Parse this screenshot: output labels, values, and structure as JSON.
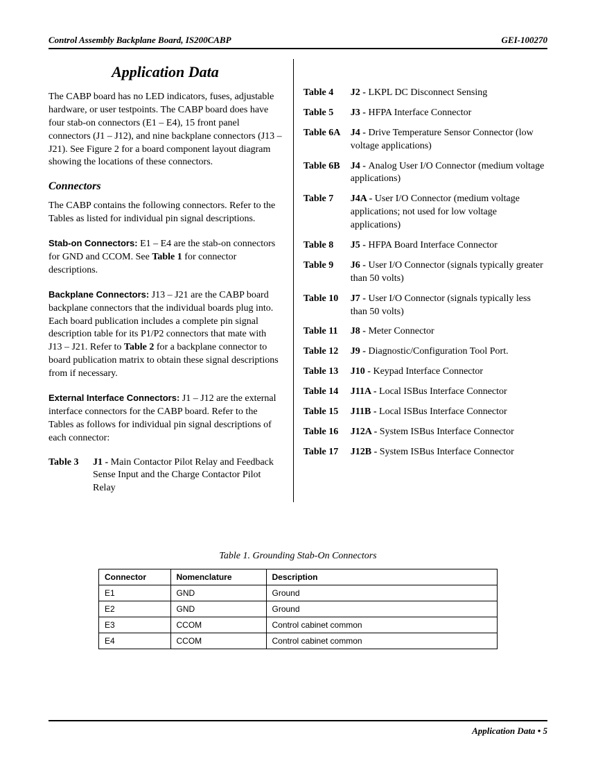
{
  "header": {
    "left": "Control Assembly Backplane Board, IS200CABP",
    "right": "GEI-100270"
  },
  "title": "Application Data",
  "intro": "The CABP board has no LED indicators, fuses, adjustable hardware, or user testpoints. The CABP board does have four stab-on connectors (E1 – E4), 15 front panel connectors (J1 – J12), and nine backplane connectors (J13 – J21). See Figure 2 for a board component layout diagram showing the locations of these connectors.",
  "connectors_heading": "Connectors",
  "connectors_intro": "The CABP contains the following connectors. Refer to the Tables as listed for individual pin signal descriptions.",
  "stabon": {
    "label": "Stab-on Connectors:",
    "text": "  E1 – E4 are the stab-on connectors for GND and CCOM. See ",
    "bold_ref": "Table 1",
    "tail": " for connector descriptions."
  },
  "backplane": {
    "label": "Backplane Connectors:",
    "text": "  J13 – J21 are the CABP board backplane connectors that the individual boards plug into. Each board publication includes a complete pin signal description table for its P1/P2 connectors that mate with J13 – J21. Refer to ",
    "bold_ref": "Table 2",
    "tail": " for a backplane connector to board publication matrix to obtain these signal descriptions from if necessary."
  },
  "external": {
    "label": "External Interface Connectors:",
    "text": "  J1 – J12 are the external interface connectors for the CABP board. Refer to the Tables as follows for individual pin signal descriptions of each connector:"
  },
  "table3": {
    "label": "Table 3",
    "conn": "J1 - ",
    "desc": "Main Contactor Pilot Relay and Feedback Sense Input and the Charge Contactor Pilot Relay"
  },
  "right_list": [
    {
      "label": "Table 4",
      "conn": "J2 - ",
      "desc": "LKPL DC Disconnect Sensing"
    },
    {
      "label": "Table 5",
      "conn": "J3 - ",
      "desc": "HFPA Interface Connector"
    },
    {
      "label": "Table 6A",
      "conn": "J4 - ",
      "desc": "Drive Temperature Sensor Connector (low voltage applications)"
    },
    {
      "label": "Table 6B",
      "conn": "J4 - ",
      "desc": "Analog User I/O Connector (medium voltage applications)"
    },
    {
      "label": "Table 7",
      "conn": "J4A - ",
      "desc": "User I/O Connector (medium voltage applications; not used for low voltage applications)"
    },
    {
      "label": "Table 8",
      "conn": "J5 - ",
      "desc": "HFPA Board Interface Connector"
    },
    {
      "label": "Table 9",
      "conn": "J6 - ",
      "desc": "User I/O Connector  (signals typically greater than 50 volts)"
    },
    {
      "label": "Table 10",
      "conn": "J7 - ",
      "desc": "User I/O Connector  (signals typically less than 50 volts)"
    },
    {
      "label": "Table 11",
      "conn": "J8 - ",
      "desc": "Meter Connector"
    },
    {
      "label": "Table 12",
      "conn": "J9 - ",
      "desc": "Diagnostic/Configuration Tool Port."
    },
    {
      "label": "Table 13",
      "conn": "J10 - ",
      "desc": "Keypad Interface Connector"
    },
    {
      "label": "Table 14",
      "conn": "J11A - ",
      "desc": "Local ISBus Interface Connector"
    },
    {
      "label": "Table 15",
      "conn": "J11B - ",
      "desc": "Local ISBus Interface Connector"
    },
    {
      "label": "Table 16",
      "conn": "J12A - ",
      "desc": "System ISBus Interface Connector"
    },
    {
      "label": "Table 17",
      "conn": "J12B - ",
      "desc": "System ISBus Interface Connector"
    }
  ],
  "table1": {
    "caption": "Table 1.  Grounding Stab-On Connectors",
    "columns": [
      "Connector",
      "Nomenclature",
      "Description"
    ],
    "rows": [
      [
        "E1",
        "GND",
        "Ground"
      ],
      [
        "E2",
        "GND",
        "Ground"
      ],
      [
        "E3",
        "CCOM",
        "Control cabinet common"
      ],
      [
        "E4",
        "CCOM",
        "Control cabinet common"
      ]
    ]
  },
  "footer": {
    "section": "Application Data",
    "separator": " • ",
    "page": "5"
  }
}
